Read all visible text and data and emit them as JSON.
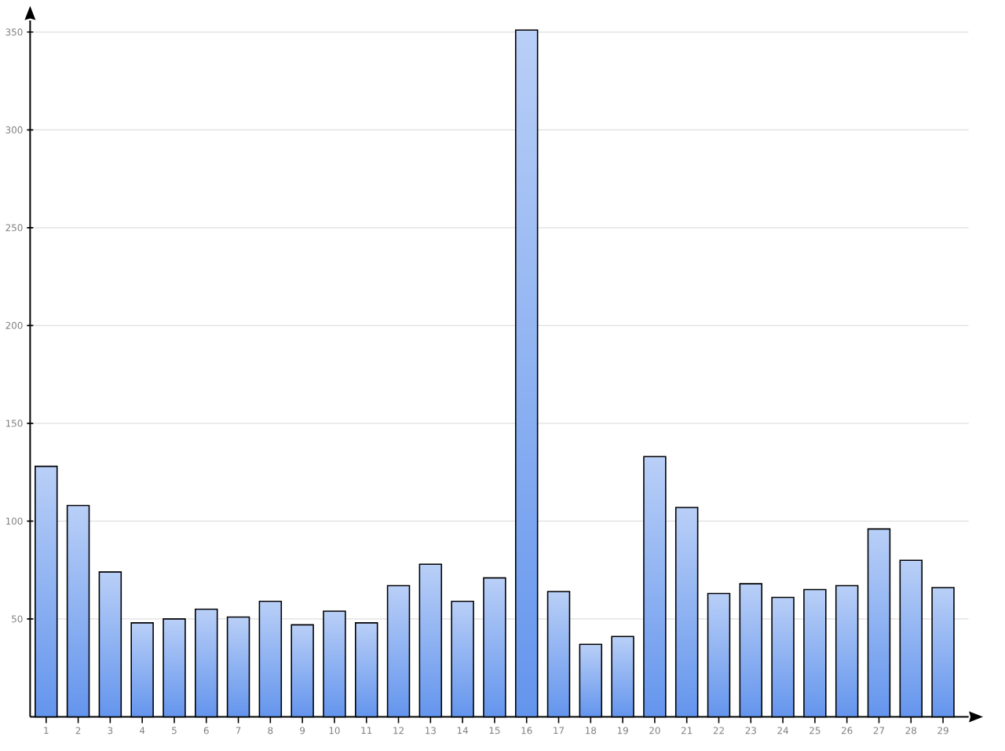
{
  "chart_data": {
    "type": "bar",
    "categories": [
      "1",
      "2",
      "3",
      "4",
      "5",
      "6",
      "7",
      "8",
      "9",
      "10",
      "11",
      "12",
      "13",
      "14",
      "15",
      "16",
      "17",
      "18",
      "19",
      "20",
      "21",
      "22",
      "23",
      "24",
      "25",
      "26",
      "27",
      "28",
      "29"
    ],
    "values": [
      128,
      108,
      74,
      48,
      50,
      55,
      51,
      59,
      47,
      54,
      48,
      67,
      78,
      59,
      71,
      351,
      64,
      37,
      41,
      133,
      107,
      63,
      68,
      61,
      65,
      67,
      96,
      80,
      66
    ],
    "color": "#6495ed",
    "ylim": [
      0,
      356
    ],
    "yticks": [
      50,
      100,
      150,
      200,
      250,
      300,
      350
    ],
    "grid": "y"
  }
}
